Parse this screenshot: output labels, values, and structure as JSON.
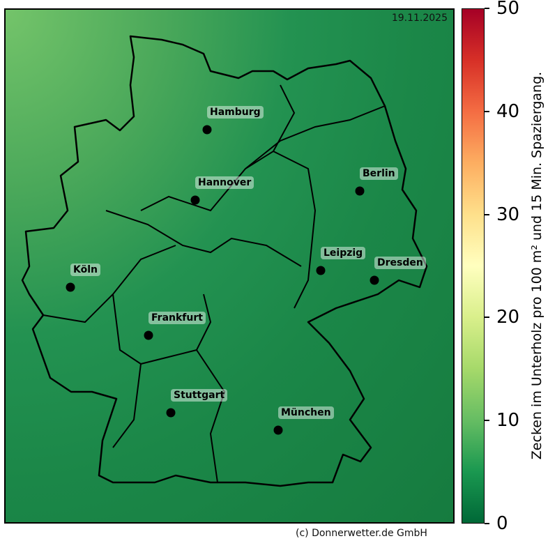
{
  "date": "19.11.2025",
  "credit": "(c) Donnerwetter.de GmbH",
  "colorbar": {
    "label": "Zecken im Unterholz pro 100 m² und 15 Min. Spaziergang.",
    "ticks": [
      "0",
      "10",
      "20",
      "30",
      "40",
      "50"
    ],
    "range": [
      0,
      50
    ],
    "colormap": "RdYlGn_r"
  },
  "cities": [
    {
      "name": "Hamburg"
    },
    {
      "name": "Berlin"
    },
    {
      "name": "Hannover"
    },
    {
      "name": "Köln"
    },
    {
      "name": "Leipzig"
    },
    {
      "name": "Dresden"
    },
    {
      "name": "Frankfurt"
    },
    {
      "name": "Stuttgart"
    },
    {
      "name": "München"
    }
  ]
}
